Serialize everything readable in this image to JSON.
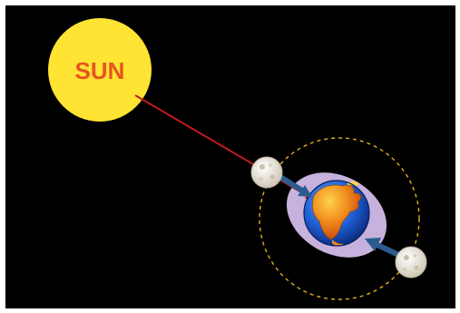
{
  "sun": {
    "label": "SUN"
  },
  "colors": {
    "background": "#000000",
    "sun_fill": "#ffe433",
    "sun_label": "#e8541e",
    "sun_ray": "#c0191f",
    "orbit": "#e0b11a",
    "tidal_bulge": "#c7b1dd",
    "ocean": "#1f5fd6",
    "land": "#f08a1c",
    "moon": "#e9e4d6",
    "gravity_arrow": "#2b5c8f"
  },
  "icons": {
    "earth": "earth-globe-icon",
    "moon": "moon-icon"
  }
}
